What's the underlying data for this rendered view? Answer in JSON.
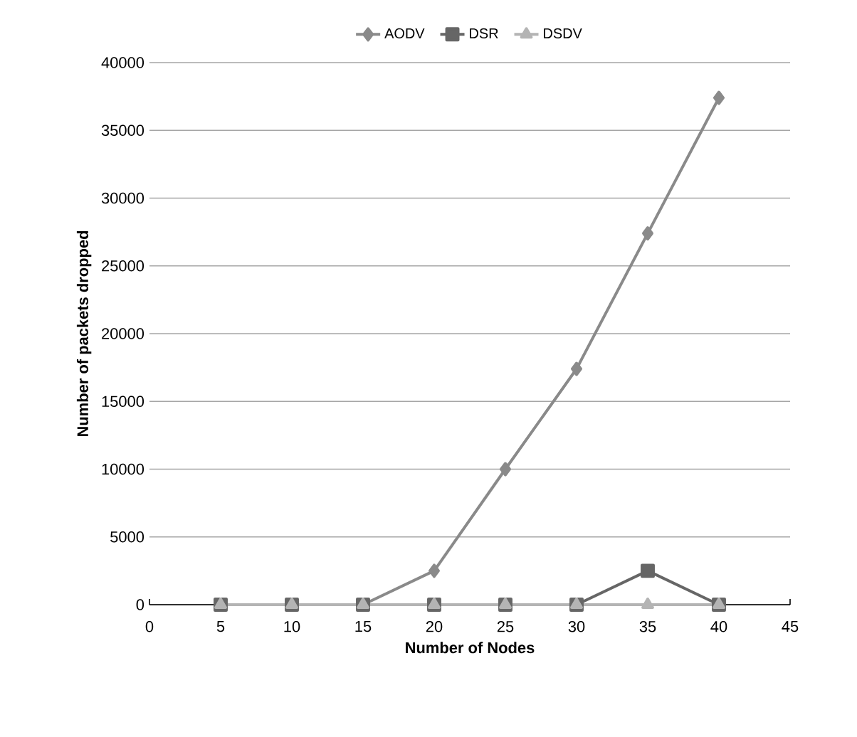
{
  "chart_data": {
    "type": "line",
    "xlabel": "Number of Nodes",
    "ylabel": "Number of packets dropped",
    "x": [
      5,
      10,
      15,
      20,
      25,
      30,
      35,
      40
    ],
    "series": [
      {
        "name": "AODV",
        "color": "#8a8a8a",
        "marker": "diamond",
        "values": [
          0,
          0,
          0,
          2500,
          10000,
          17400,
          27400,
          37400
        ]
      },
      {
        "name": "DSR",
        "color": "#666666",
        "marker": "square",
        "values": [
          0,
          0,
          0,
          0,
          0,
          0,
          2500,
          0
        ]
      },
      {
        "name": "DSDV",
        "color": "#b4b4b4",
        "marker": "triangle",
        "values": [
          0,
          0,
          0,
          0,
          0,
          0,
          0,
          0
        ]
      }
    ],
    "xlim": [
      0,
      45
    ],
    "xticks": [
      0,
      5,
      10,
      15,
      20,
      25,
      30,
      35,
      40,
      45
    ],
    "ylim": [
      0,
      40000
    ],
    "yticks": [
      0,
      5000,
      10000,
      15000,
      20000,
      25000,
      30000,
      35000,
      40000
    ],
    "grid": "y",
    "legend": "top",
    "line_style": "solid"
  }
}
